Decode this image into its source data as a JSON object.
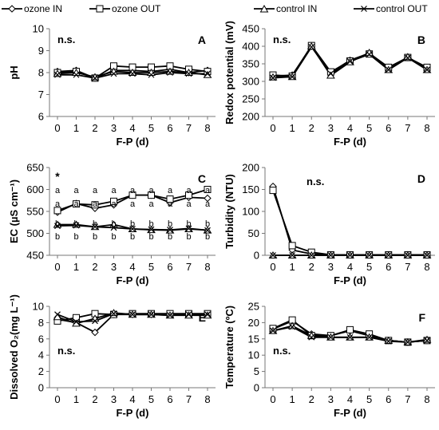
{
  "legend": {
    "series": [
      {
        "name": "ozone IN",
        "marker": "diamond"
      },
      {
        "name": "ozone OUT",
        "marker": "square"
      },
      {
        "name": "control IN",
        "marker": "triangle"
      },
      {
        "name": "control OUT",
        "marker": "x"
      }
    ]
  },
  "chart_data": [
    {
      "type": "line",
      "panel": "A",
      "annotation": "n.s.",
      "xlabel": "F-P (d)",
      "ylabel": "pH",
      "x": [
        0,
        1,
        2,
        3,
        4,
        5,
        6,
        7,
        8
      ],
      "ylim": [
        6,
        10
      ],
      "yticks": [
        6,
        7,
        8,
        9,
        10
      ],
      "grid": false,
      "series": [
        {
          "name": "ozone IN",
          "values": [
            8.05,
            8.1,
            7.75,
            8.1,
            8.1,
            8.05,
            8.15,
            8.0,
            8.1
          ]
        },
        {
          "name": "ozone OUT",
          "values": [
            8.0,
            8.05,
            7.75,
            8.3,
            8.25,
            8.25,
            8.3,
            8.15,
            8.05
          ]
        },
        {
          "name": "control IN",
          "values": [
            7.95,
            8.0,
            7.8,
            8.05,
            8.0,
            8.0,
            8.05,
            8.0,
            7.9
          ]
        },
        {
          "name": "control OUT",
          "values": [
            7.9,
            7.9,
            7.75,
            7.95,
            7.95,
            7.9,
            8.0,
            7.95,
            7.95
          ]
        }
      ]
    },
    {
      "type": "line",
      "panel": "B",
      "annotation": "n.s.",
      "xlabel": "F-P (d)",
      "ylabel": "Redox potential (mV)",
      "x": [
        0,
        1,
        2,
        3,
        4,
        5,
        6,
        7,
        8
      ],
      "ylim": [
        200,
        450
      ],
      "yticks": [
        200,
        250,
        300,
        350,
        400,
        450
      ],
      "grid": false,
      "series": [
        {
          "name": "ozone IN",
          "values": [
            315,
            318,
            400,
            325,
            360,
            380,
            340,
            368,
            338
          ]
        },
        {
          "name": "ozone OUT",
          "values": [
            318,
            315,
            402,
            327,
            358,
            378,
            340,
            368,
            340
          ]
        },
        {
          "name": "control IN",
          "values": [
            312,
            313,
            400,
            317,
            355,
            382,
            333,
            370,
            333
          ]
        },
        {
          "name": "control OUT",
          "values": [
            310,
            313,
            398,
            322,
            357,
            377,
            333,
            367,
            333
          ]
        }
      ]
    },
    {
      "type": "line",
      "panel": "C",
      "annotation": "*",
      "xlabel": "F-P (d)",
      "ylabel": "EC (µS cm⁻¹)",
      "x": [
        0,
        1,
        2,
        3,
        4,
        5,
        6,
        7,
        8
      ],
      "ylim": [
        450,
        650
      ],
      "yticks": [
        450,
        500,
        550,
        600,
        650
      ],
      "grid": false,
      "series": [
        {
          "name": "ozone IN",
          "values": [
            548,
            568,
            557,
            565,
            587,
            587,
            570,
            582,
            580
          ]
        },
        {
          "name": "ozone OUT",
          "values": [
            552,
            567,
            565,
            573,
            587,
            587,
            578,
            587,
            600
          ]
        },
        {
          "name": "control IN",
          "values": [
            520,
            520,
            515,
            520,
            510,
            508,
            507,
            510,
            507
          ]
        },
        {
          "name": "control OUT",
          "values": [
            517,
            518,
            515,
            513,
            510,
            509,
            508,
            511,
            507
          ]
        }
      ],
      "letters": [
        [
          "a",
          "a",
          "b",
          "b"
        ],
        [
          "a",
          "a",
          "b",
          "b"
        ],
        [
          "a",
          "a",
          "b",
          "b"
        ],
        [
          "a",
          "a",
          "b",
          "b"
        ],
        [
          "a",
          "a",
          "b",
          "b"
        ],
        [
          "a",
          "a",
          "b",
          "b"
        ],
        [
          "a",
          "a",
          "b",
          "b"
        ],
        [
          "a",
          "a",
          "b",
          "b"
        ],
        [
          "a",
          "a",
          "b",
          "b"
        ]
      ]
    },
    {
      "type": "line",
      "panel": "D",
      "annotation": "n.s.",
      "xlabel": "F-P (d)",
      "ylabel": "Turbidity (NTU)",
      "x": [
        0,
        1,
        2,
        3,
        4,
        5,
        6,
        7,
        8
      ],
      "ylim": [
        0,
        200
      ],
      "yticks": [
        0,
        50,
        100,
        150,
        200
      ],
      "grid": false,
      "series": [
        {
          "name": "ozone IN",
          "values": [
            157,
            12,
            3,
            1,
            1,
            1,
            1,
            1,
            1
          ]
        },
        {
          "name": "ozone OUT",
          "values": [
            148,
            22,
            7,
            1,
            1,
            1,
            1,
            1,
            1
          ]
        },
        {
          "name": "control IN",
          "values": [
            0,
            0,
            0,
            0,
            0,
            0,
            0,
            0,
            0
          ]
        },
        {
          "name": "control OUT",
          "values": [
            0,
            0,
            0,
            0,
            0,
            0,
            0,
            0,
            0
          ]
        }
      ]
    },
    {
      "type": "line",
      "panel": "E",
      "annotation": "n.s.",
      "xlabel": "F-P (d)",
      "ylabel": "Dissolved O₂(mg L⁻¹)",
      "x": [
        0,
        1,
        2,
        3,
        4,
        5,
        6,
        7,
        8
      ],
      "ylim": [
        0,
        10
      ],
      "yticks": [
        0,
        2,
        4,
        6,
        8,
        10
      ],
      "grid": false,
      "series": [
        {
          "name": "ozone IN",
          "values": [
            8.4,
            8.0,
            6.8,
            9.0,
            9.0,
            9.0,
            9.0,
            9.0,
            9.0
          ]
        },
        {
          "name": "ozone OUT",
          "values": [
            8.2,
            8.6,
            9.1,
            9.0,
            9.1,
            9.1,
            9.1,
            9.1,
            9.1
          ]
        },
        {
          "name": "control IN",
          "values": [
            8.7,
            7.9,
            8.5,
            9.2,
            9.0,
            9.0,
            8.9,
            8.9,
            8.9
          ]
        },
        {
          "name": "control OUT",
          "values": [
            9.0,
            8.1,
            8.2,
            9.1,
            9.0,
            9.0,
            8.9,
            9.0,
            9.0
          ]
        }
      ]
    },
    {
      "type": "line",
      "panel": "F",
      "annotation": "n.s.",
      "xlabel": "F-P (d)",
      "ylabel": "Temperature (ºC)",
      "x": [
        0,
        1,
        2,
        3,
        4,
        5,
        6,
        7,
        8
      ],
      "ylim": [
        0,
        25
      ],
      "yticks": [
        0,
        5,
        10,
        15,
        20,
        25
      ],
      "grid": false,
      "series": [
        {
          "name": "ozone IN",
          "values": [
            18.0,
            20.5,
            16.5,
            16.0,
            17.5,
            16.0,
            14.5,
            14.0,
            14.5
          ]
        },
        {
          "name": "ozone OUT",
          "values": [
            18.2,
            20.8,
            16.0,
            16.0,
            17.8,
            16.5,
            14.5,
            14.0,
            14.5
          ]
        },
        {
          "name": "control IN",
          "values": [
            17.5,
            19.0,
            16.0,
            15.5,
            15.5,
            15.5,
            14.5,
            14.0,
            14.8
          ]
        },
        {
          "name": "control OUT",
          "values": [
            17.5,
            18.7,
            15.5,
            15.5,
            15.5,
            15.5,
            14.3,
            14.0,
            14.5
          ]
        }
      ]
    }
  ]
}
